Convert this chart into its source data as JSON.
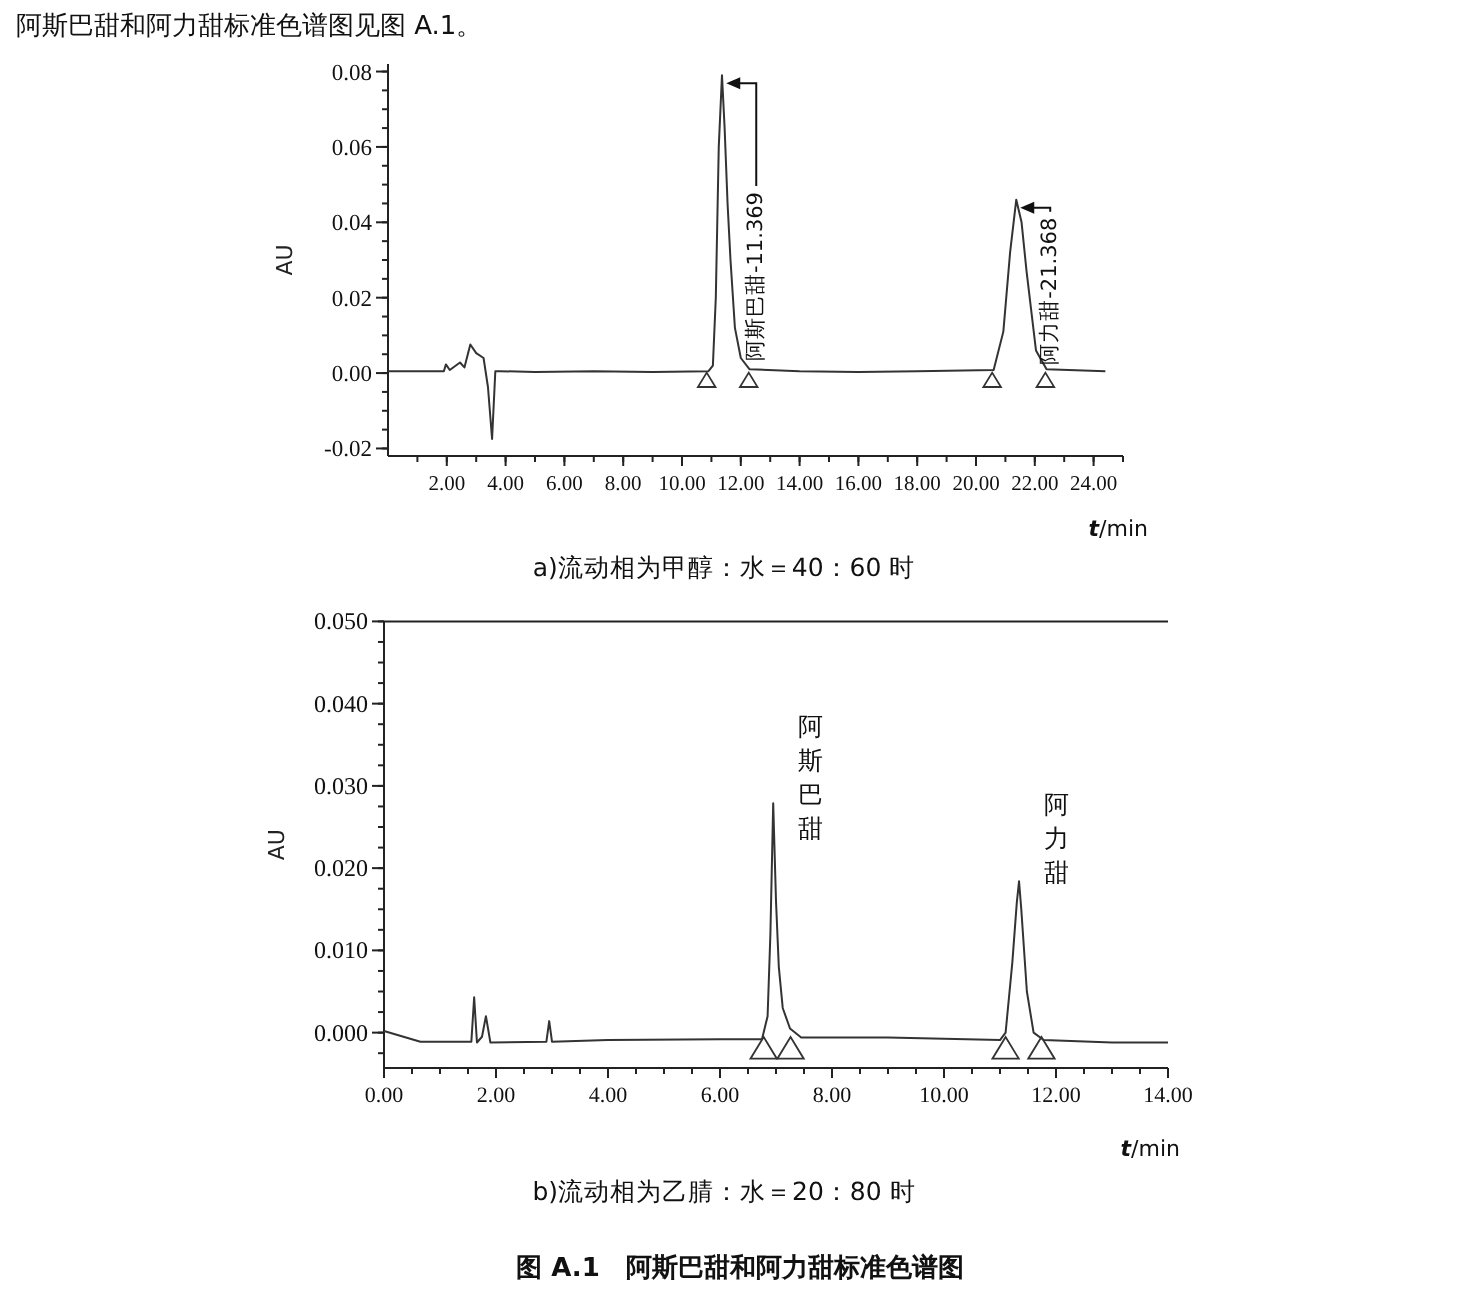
{
  "chart_data": [
    {
      "type": "line",
      "title": "a)流动相为甲醇：水＝40：60 时",
      "xlabel": "*t*/min",
      "ylabel": "AU",
      "xlim": [
        0,
        25
      ],
      "ylim": [
        -0.022,
        0.082
      ],
      "xticks": [
        {
          "value": 2,
          "label": "2.00"
        },
        {
          "value": 4,
          "label": "4.00"
        },
        {
          "value": 6,
          "label": "6.00"
        },
        {
          "value": 8,
          "label": "8.00"
        },
        {
          "value": 10,
          "label": "10.00"
        },
        {
          "value": 12,
          "label": "12.00"
        },
        {
          "value": 14,
          "label": "14.00"
        },
        {
          "value": 16,
          "label": "16.00"
        },
        {
          "value": 18,
          "label": "18.00"
        },
        {
          "value": 20,
          "label": "20.00"
        },
        {
          "value": 22,
          "label": "22.00"
        },
        {
          "value": 24,
          "label": "24.00"
        }
      ],
      "yticks": [
        {
          "value": -0.02,
          "label": "-0.02"
        },
        {
          "value": 0,
          "label": "0.00"
        },
        {
          "value": 0.02,
          "label": "0.02"
        },
        {
          "value": 0.04,
          "label": "0.04"
        },
        {
          "value": 0.06,
          "label": "0.06"
        },
        {
          "value": 0.08,
          "label": "0.08"
        }
      ],
      "annotations": [
        "阿斯巴甜和阿力甜标准色谱图见图 A.1。",
        {
          "text": "阿斯巴甜-11.369",
          "x": 11.369,
          "y": 0.079
        },
        {
          "text": "阿力甜-21.368",
          "x": 21.368,
          "y": 0.046
        }
      ],
      "series": [
        {
          "color": "#333333",
          "x": [
            0,
            1.9,
            1.97,
            2.1,
            2.45,
            2.6,
            2.8,
            3.0,
            3.25,
            3.4,
            3.54,
            3.65,
            3.8,
            5,
            7,
            9,
            10.9,
            11.05,
            11.15,
            11.25,
            11.36,
            11.45,
            11.55,
            11.65,
            11.8,
            12.0,
            12.3,
            14,
            16,
            18,
            20.6,
            20.93,
            21.16,
            21.37,
            21.55,
            21.72,
            22.04,
            22.4,
            24.4
          ],
          "values": [
            0.0005,
            0.0005,
            0.0023,
            0.0008,
            0.0028,
            0.0015,
            0.0076,
            0.0053,
            0.004,
            -0.0037,
            -0.0175,
            0.0005,
            0.0005,
            0.0003,
            0.0005,
            0.0003,
            0.0005,
            0.002,
            0.02,
            0.06,
            0.079,
            0.065,
            0.045,
            0.03,
            0.012,
            0.004,
            0.001,
            0.0005,
            0.0003,
            0.0005,
            0.0008,
            0.011,
            0.032,
            0.046,
            0.04,
            0.027,
            0.006,
            0.001,
            0.0005
          ]
        },
        {
          "type": "scatter",
          "marker": "triangle",
          "color": "#333333",
          "x": [
            10.84,
            12.27,
            20.55,
            22.36
          ],
          "values": [
            -0.002,
            -0.002,
            -0.002,
            -0.002
          ]
        }
      ]
    },
    {
      "type": "line",
      "title": "b)流动相为乙腈：水＝20：80 时",
      "xlabel": "*t*/min",
      "ylabel": "AU",
      "xlim": [
        0,
        14
      ],
      "ylim": [
        -0.0043,
        0.05
      ],
      "xticks": [
        {
          "value": 0,
          "label": "0.00"
        },
        {
          "value": 2,
          "label": "2.00"
        },
        {
          "value": 4,
          "label": "4.00"
        },
        {
          "value": 6,
          "label": "6.00"
        },
        {
          "value": 8,
          "label": "8.00"
        },
        {
          "value": 10,
          "label": "10.00"
        },
        {
          "value": 12,
          "label": "12.00"
        },
        {
          "value": 14,
          "label": "14.00"
        }
      ],
      "yticks": [
        {
          "value": 0,
          "label": "0.000"
        },
        {
          "value": 0.01,
          "label": "0.010"
        },
        {
          "value": 0.02,
          "label": "0.020"
        },
        {
          "value": 0.03,
          "label": "0.030"
        },
        {
          "value": 0.04,
          "label": "0.040"
        },
        {
          "value": 0.05,
          "label": "0.050"
        }
      ],
      "annotations": [
        {
          "text": "阿斯巴甜",
          "x": 6.95,
          "y": 0.0279
        },
        {
          "text": "阿力甜",
          "x": 11.34,
          "y": 0.0184
        },
        "图 A.1　阿斯巴甜和阿力甜标准色谱图"
      ],
      "series": [
        {
          "color": "#333333",
          "x": [
            0,
            0.65,
            1.5,
            1.56,
            1.61,
            1.66,
            1.75,
            1.82,
            1.9,
            2.9,
            2.95,
            3.0,
            4,
            6,
            6.75,
            6.85,
            6.9,
            6.95,
            7.0,
            7.05,
            7.12,
            7.25,
            7.45,
            9,
            11.0,
            11.1,
            11.22,
            11.3,
            11.34,
            11.38,
            11.48,
            11.6,
            11.78,
            13,
            14
          ],
          "values": [
            0.0002,
            -0.0011,
            -0.0011,
            -0.0011,
            0.0043,
            -0.0012,
            -0.0005,
            0.002,
            -0.0012,
            -0.0011,
            0.0014,
            -0.0011,
            -0.0009,
            -0.0008,
            -0.0008,
            0.002,
            0.012,
            0.0279,
            0.016,
            0.008,
            0.003,
            0.0005,
            -0.0006,
            -0.0006,
            -0.0009,
            0.0,
            0.0085,
            0.0158,
            0.0184,
            0.015,
            0.005,
            0.0,
            -0.0009,
            -0.0012,
            -0.0012
          ]
        },
        {
          "type": "scatter",
          "marker": "triangle",
          "color": "#333333",
          "x": [
            6.78,
            7.26,
            11.1,
            11.74
          ],
          "values": [
            -0.002,
            -0.002,
            -0.002,
            -0.002
          ]
        }
      ]
    }
  ]
}
